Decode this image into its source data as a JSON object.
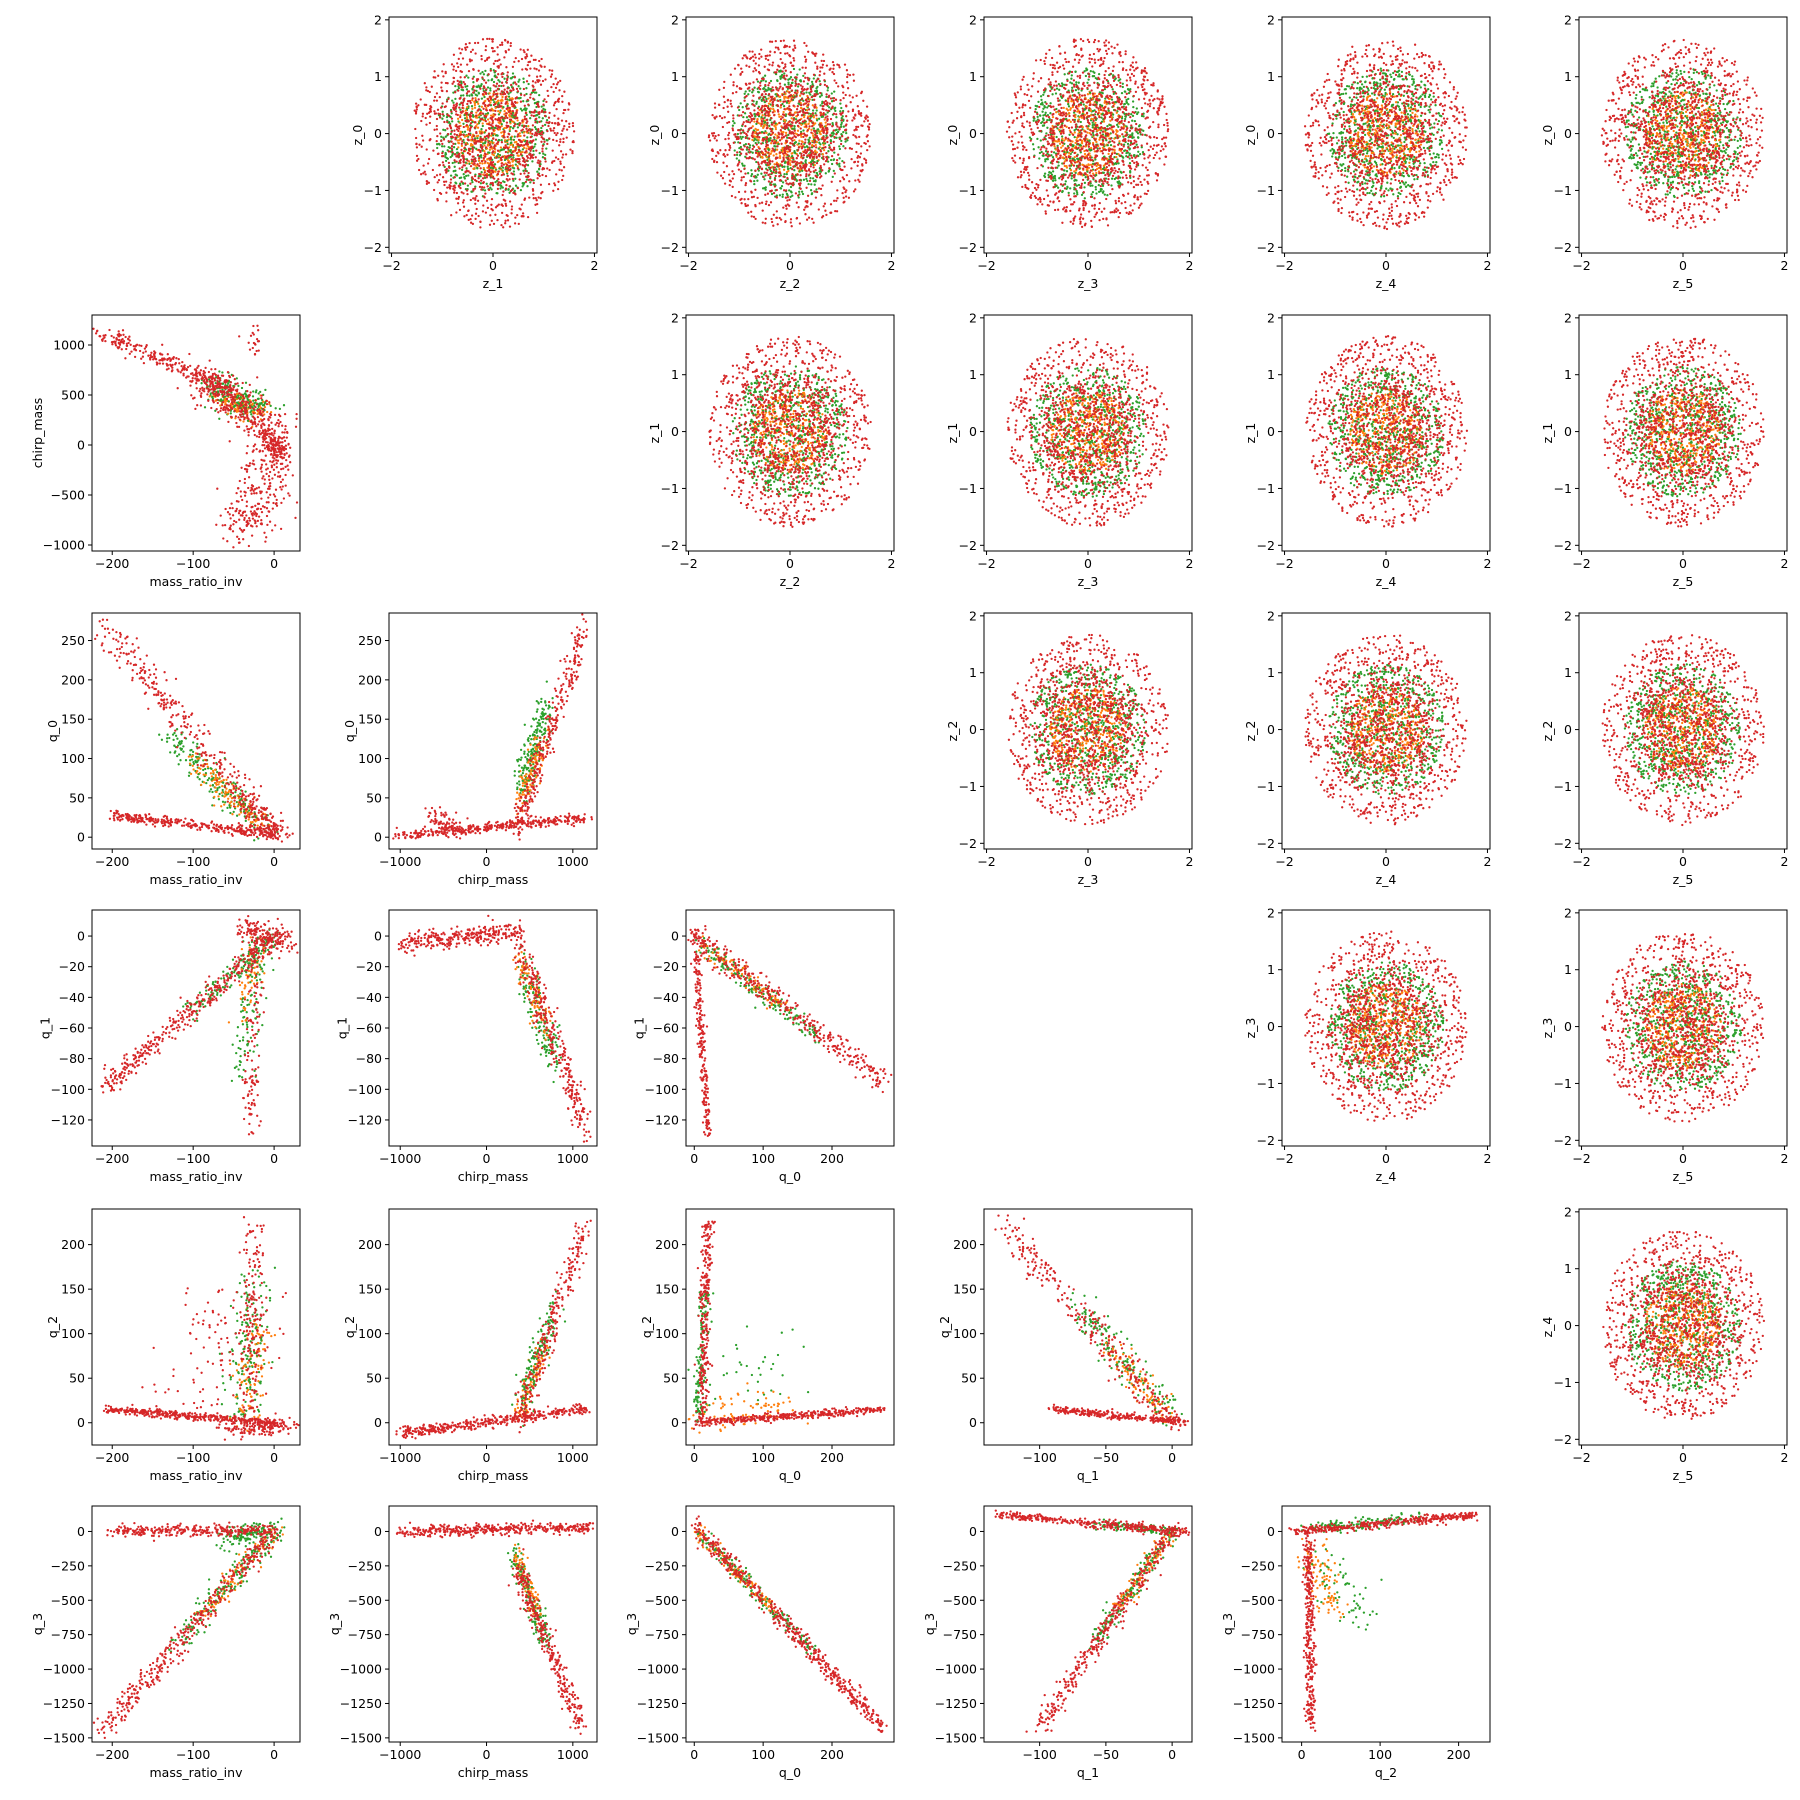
{
  "figure": {
    "kind": "corner pair-plot grid (6 x 6, diagonal empty)",
    "point_colors": [
      "#2ca02c",
      "#ff7f0e",
      "#d62728"
    ],
    "grid": false,
    "legend": "none"
  },
  "chart_data": [
    {
      "type": "scatter",
      "panel": "r0c1",
      "xlabel": "z_1",
      "ylabel": "z_0",
      "xlim": [
        -2.05,
        2.05
      ],
      "ylim": [
        -2.1,
        2.05
      ],
      "xticks": [
        "−2",
        "0",
        "2"
      ],
      "xtick_values": [
        -2,
        0,
        2
      ],
      "yticks": [
        "−2",
        "−1",
        "0",
        "1",
        "2"
      ],
      "ytick_values": [
        -2,
        -1,
        0,
        1,
        2
      ],
      "shape": "isotropic blob centred at (0,0), red spread ≈ ±1.8, green ≈ ±1.2, orange ≈ ±0.8"
    },
    {
      "type": "scatter",
      "panel": "r0c2",
      "xlabel": "z_2",
      "ylabel": "z_0",
      "xlim": [
        -2.05,
        2.05
      ],
      "ylim": [
        -2.1,
        2.05
      ],
      "xticks": [
        "−2",
        "0",
        "2"
      ],
      "xtick_values": [
        -2,
        0,
        2
      ],
      "yticks": [
        "−2",
        "−1",
        "0",
        "1",
        "2"
      ],
      "ytick_values": [
        -2,
        -1,
        0,
        1,
        2
      ],
      "shape": "isotropic blob centred at (0,0)"
    },
    {
      "type": "scatter",
      "panel": "r0c3",
      "xlabel": "z_3",
      "ylabel": "z_0",
      "xlim": [
        -2.05,
        2.05
      ],
      "ylim": [
        -2.1,
        2.05
      ],
      "xticks": [
        "−2",
        "0",
        "2"
      ],
      "xtick_values": [
        -2,
        0,
        2
      ],
      "yticks": [
        "−2",
        "−1",
        "0",
        "1",
        "2"
      ],
      "ytick_values": [
        -2,
        -1,
        0,
        1,
        2
      ],
      "shape": "isotropic blob centred at (0,0)"
    },
    {
      "type": "scatter",
      "panel": "r0c4",
      "xlabel": "z_4",
      "ylabel": "z_0",
      "xlim": [
        -2.05,
        2.05
      ],
      "ylim": [
        -2.1,
        2.05
      ],
      "xticks": [
        "−2",
        "0",
        "2"
      ],
      "xtick_values": [
        -2,
        0,
        2
      ],
      "yticks": [
        "−2",
        "−1",
        "0",
        "1",
        "2"
      ],
      "ytick_values": [
        -2,
        -1,
        0,
        1,
        2
      ],
      "shape": "isotropic blob centred at (0,0)"
    },
    {
      "type": "scatter",
      "panel": "r0c5",
      "xlabel": "z_5",
      "ylabel": "z_0",
      "xlim": [
        -2.05,
        2.05
      ],
      "ylim": [
        -2.1,
        2.05
      ],
      "xticks": [
        "−2",
        "0",
        "2"
      ],
      "xtick_values": [
        -2,
        0,
        2
      ],
      "yticks": [
        "−2",
        "−1",
        "0",
        "1",
        "2"
      ],
      "ytick_values": [
        -2,
        -1,
        0,
        1,
        2
      ],
      "shape": "isotropic blob centred at (0,0)"
    },
    {
      "type": "scatter",
      "panel": "r1c0",
      "xlabel": "mass_ratio_inv",
      "ylabel": "chirp_mass",
      "xlim": [
        -225,
        32
      ],
      "ylim": [
        -1060,
        1300
      ],
      "xticks": [
        "−200",
        "−100",
        "0"
      ],
      "xtick_values": [
        -200,
        -100,
        0
      ],
      "yticks": [
        "−1000",
        "−500",
        "0",
        "500",
        "1000"
      ],
      "ytick_values": [
        -1000,
        -500,
        0,
        500,
        1000
      ],
      "shape": "upper arm from (-215,1140) to (-40,500) bending through (0,0), lower cloud down to (-40,-950)"
    },
    {
      "type": "scatter",
      "panel": "r1c2",
      "xlabel": "z_2",
      "ylabel": "z_1",
      "xlim": [
        -2.05,
        2.05
      ],
      "ylim": [
        -2.1,
        2.05
      ],
      "xticks": [
        "−2",
        "0",
        "2"
      ],
      "xtick_values": [
        -2,
        0,
        2
      ],
      "yticks": [
        "−2",
        "−1",
        "0",
        "1",
        "2"
      ],
      "ytick_values": [
        -2,
        -1,
        0,
        1,
        2
      ],
      "shape": "isotropic blob centred at (0,0)"
    },
    {
      "type": "scatter",
      "panel": "r1c3",
      "xlabel": "z_3",
      "ylabel": "z_1",
      "xlim": [
        -2.05,
        2.05
      ],
      "ylim": [
        -2.1,
        2.05
      ],
      "xticks": [
        "−2",
        "0",
        "2"
      ],
      "xtick_values": [
        -2,
        0,
        2
      ],
      "yticks": [
        "−2",
        "−1",
        "0",
        "1",
        "2"
      ],
      "ytick_values": [
        -2,
        -1,
        0,
        1,
        2
      ],
      "shape": "isotropic blob centred at (0,0)"
    },
    {
      "type": "scatter",
      "panel": "r1c4",
      "xlabel": "z_4",
      "ylabel": "z_1",
      "xlim": [
        -2.05,
        2.05
      ],
      "ylim": [
        -2.1,
        2.05
      ],
      "xticks": [
        "−2",
        "0",
        "2"
      ],
      "xtick_values": [
        -2,
        0,
        2
      ],
      "yticks": [
        "−2",
        "−1",
        "0",
        "1",
        "2"
      ],
      "ytick_values": [
        -2,
        -1,
        0,
        1,
        2
      ],
      "shape": "isotropic blob centred at (0,0)"
    },
    {
      "type": "scatter",
      "panel": "r1c5",
      "xlabel": "z_5",
      "ylabel": "z_1",
      "xlim": [
        -2.05,
        2.05
      ],
      "ylim": [
        -2.1,
        2.05
      ],
      "xticks": [
        "−2",
        "0",
        "2"
      ],
      "xtick_values": [
        -2,
        0,
        2
      ],
      "yticks": [
        "−2",
        "−1",
        "0",
        "1",
        "2"
      ],
      "ytick_values": [
        -2,
        -1,
        0,
        1,
        2
      ],
      "shape": "isotropic blob centred at (0,0)"
    },
    {
      "type": "scatter",
      "panel": "r2c0",
      "xlabel": "mass_ratio_inv",
      "ylabel": "q_0",
      "xlim": [
        -225,
        32
      ],
      "ylim": [
        -15,
        285
      ],
      "xticks": [
        "−200",
        "−100",
        "0"
      ],
      "xtick_values": [
        -200,
        -100,
        0
      ],
      "yticks": [
        "0",
        "50",
        "100",
        "150",
        "200",
        "250"
      ],
      "ytick_values": [
        0,
        50,
        100,
        150,
        200,
        250
      ],
      "shape": "diagonal band from (-210,270) to (0,0); flat band from (-200,28) to (0,5)"
    },
    {
      "type": "scatter",
      "panel": "r2c1",
      "xlabel": "chirp_mass",
      "ylabel": "q_0",
      "xlim": [
        -1130,
        1280
      ],
      "ylim": [
        -15,
        285
      ],
      "xticks": [
        "−1000",
        "0",
        "1000"
      ],
      "xtick_values": [
        -1000,
        0,
        1000
      ],
      "yticks": [
        "0",
        "50",
        "100",
        "150",
        "200",
        "250"
      ],
      "ytick_values": [
        0,
        50,
        100,
        150,
        200,
        250
      ],
      "shape": "rising arm from (300,0) to (1150,270); low band from (-1000,0) to (1200,25)"
    },
    {
      "type": "scatter",
      "panel": "r2c3",
      "xlabel": "z_3",
      "ylabel": "z_2",
      "xlim": [
        -2.05,
        2.05
      ],
      "ylim": [
        -2.1,
        2.05
      ],
      "xticks": [
        "−2",
        "0",
        "2"
      ],
      "xtick_values": [
        -2,
        0,
        2
      ],
      "yticks": [
        "−2",
        "−1",
        "0",
        "1",
        "2"
      ],
      "ytick_values": [
        -2,
        -1,
        0,
        1,
        2
      ],
      "shape": "isotropic blob centred at (0,0)"
    },
    {
      "type": "scatter",
      "panel": "r2c4",
      "xlabel": "z_4",
      "ylabel": "z_2",
      "xlim": [
        -2.05,
        2.05
      ],
      "ylim": [
        -2.1,
        2.05
      ],
      "xticks": [
        "−2",
        "0",
        "2"
      ],
      "xtick_values": [
        -2,
        0,
        2
      ],
      "yticks": [
        "−2",
        "−1",
        "0",
        "1",
        "2"
      ],
      "ytick_values": [
        -2,
        -1,
        0,
        1,
        2
      ],
      "shape": "isotropic blob centred at (0,0)"
    },
    {
      "type": "scatter",
      "panel": "r2c5",
      "xlabel": "z_5",
      "ylabel": "z_2",
      "xlim": [
        -2.05,
        2.05
      ],
      "ylim": [
        -2.1,
        2.05
      ],
      "xticks": [
        "−2",
        "0",
        "2"
      ],
      "xtick_values": [
        -2,
        0,
        2
      ],
      "yticks": [
        "−2",
        "−1",
        "0",
        "1",
        "2"
      ],
      "ytick_values": [
        -2,
        -1,
        0,
        1,
        2
      ],
      "shape": "isotropic blob centred at (0,0)"
    },
    {
      "type": "scatter",
      "panel": "r3c0",
      "xlabel": "mass_ratio_inv",
      "ylabel": "q_1",
      "xlim": [
        -225,
        32
      ],
      "ylim": [
        -137,
        17
      ],
      "xticks": [
        "−200",
        "−100",
        "0"
      ],
      "xtick_values": [
        -200,
        -100,
        0
      ],
      "yticks": [
        "−120",
        "−100",
        "−80",
        "−60",
        "−40",
        "−20",
        "0"
      ],
      "ytick_values": [
        -120,
        -100,
        -80,
        -60,
        -40,
        -20,
        0
      ],
      "shape": "diagonal band from (-210,-100) to (0,0); vertical streak at x≈-25 down to -130"
    },
    {
      "type": "scatter",
      "panel": "r3c1",
      "xlabel": "chirp_mass",
      "ylabel": "q_1",
      "xlim": [
        -1130,
        1280
      ],
      "ylim": [
        -137,
        17
      ],
      "xticks": [
        "−1000",
        "0",
        "1000"
      ],
      "xtick_values": [
        -1000,
        0,
        1000
      ],
      "yticks": [
        "−120",
        "−100",
        "−80",
        "−60",
        "−40",
        "−20",
        "0"
      ],
      "ytick_values": [
        -120,
        -100,
        -80,
        -60,
        -40,
        -20,
        0
      ],
      "shape": "flat band near y=0 from -1000 to 400, then drooping arm to (1150,-125)"
    },
    {
      "type": "scatter",
      "panel": "r3c2",
      "xlabel": "q_0",
      "ylabel": "q_1",
      "xlim": [
        -12,
        290
      ],
      "ylim": [
        -137,
        17
      ],
      "xticks": [
        "0",
        "100",
        "200"
      ],
      "xtick_values": [
        0,
        100,
        200
      ],
      "yticks": [
        "−120",
        "−100",
        "−80",
        "−60",
        "−40",
        "−20",
        "0"
      ],
      "ytick_values": [
        -120,
        -100,
        -80,
        -60,
        -40,
        -20,
        0
      ],
      "shape": "diagonal band from (0,0) to (275,-95); steep streak from (0,0) to (20,-130)"
    },
    {
      "type": "scatter",
      "panel": "r3c4",
      "xlabel": "z_4",
      "ylabel": "z_3",
      "xlim": [
        -2.05,
        2.05
      ],
      "ylim": [
        -2.1,
        2.05
      ],
      "xticks": [
        "−2",
        "0",
        "2"
      ],
      "xtick_values": [
        -2,
        0,
        2
      ],
      "yticks": [
        "−2",
        "−1",
        "0",
        "1",
        "2"
      ],
      "ytick_values": [
        -2,
        -1,
        0,
        1,
        2
      ],
      "shape": "isotropic blob centred at (0,0)"
    },
    {
      "type": "scatter",
      "panel": "r3c5",
      "xlabel": "z_5",
      "ylabel": "z_3",
      "xlim": [
        -2.05,
        2.05
      ],
      "ylim": [
        -2.1,
        2.05
      ],
      "xticks": [
        "−2",
        "0",
        "2"
      ],
      "xtick_values": [
        -2,
        0,
        2
      ],
      "yticks": [
        "−2",
        "−1",
        "0",
        "1",
        "2"
      ],
      "ytick_values": [
        -2,
        -1,
        0,
        1,
        2
      ],
      "shape": "isotropic blob centred at (0,0)"
    },
    {
      "type": "scatter",
      "panel": "r4c0",
      "xlabel": "mass_ratio_inv",
      "ylabel": "q_2",
      "xlim": [
        -225,
        32
      ],
      "ylim": [
        -25,
        240
      ],
      "xticks": [
        "−200",
        "−100",
        "0"
      ],
      "xtick_values": [
        -200,
        -100,
        0
      ],
      "yticks": [
        "0",
        "50",
        "100",
        "150",
        "200"
      ],
      "ytick_values": [
        0,
        50,
        100,
        150,
        200
      ],
      "shape": "flat band from (-210,15) to (0,0); vertical scatter at x≈-25 up to 225"
    },
    {
      "type": "scatter",
      "panel": "r4c1",
      "xlabel": "chirp_mass",
      "ylabel": "q_2",
      "xlim": [
        -1130,
        1280
      ],
      "ylim": [
        -25,
        240
      ],
      "xticks": [
        "−1000",
        "0",
        "1000"
      ],
      "xtick_values": [
        -1000,
        0,
        1000
      ],
      "yticks": [
        "0",
        "50",
        "100",
        "150",
        "200"
      ],
      "ytick_values": [
        0,
        50,
        100,
        150,
        200
      ],
      "shape": "low band from (-1000,-12) to (1150,15); rising arm from (350,0) to (1150,220)"
    },
    {
      "type": "scatter",
      "panel": "r4c2",
      "xlabel": "q_0",
      "ylabel": "q_2",
      "xlim": [
        -12,
        290
      ],
      "ylim": [
        -25,
        240
      ],
      "xticks": [
        "0",
        "100",
        "200"
      ],
      "xtick_values": [
        0,
        100,
        200
      ],
      "yticks": [
        "0",
        "50",
        "100",
        "150",
        "200"
      ],
      "ytick_values": [
        0,
        50,
        100,
        150,
        200
      ],
      "shape": "vertical streak at x≈15 up to 225; flat band from (0,0) to (275,15)"
    },
    {
      "type": "scatter",
      "panel": "r4c3",
      "xlabel": "q_1",
      "ylabel": "q_2",
      "xlim": [
        -142,
        15
      ],
      "ylim": [
        -25,
        240
      ],
      "xticks": [
        "−100",
        "−50",
        "0"
      ],
      "xtick_values": [
        -100,
        -50,
        0
      ],
      "yticks": [
        "0",
        "50",
        "100",
        "150",
        "200"
      ],
      "ytick_values": [
        0,
        50,
        100,
        150,
        200
      ],
      "shape": "diagonal band from (-130,225) to (0,0); flat band from (-90,15) to (10,0)"
    },
    {
      "type": "scatter",
      "panel": "r4c5",
      "xlabel": "z_5",
      "ylabel": "z_4",
      "xlim": [
        -2.05,
        2.05
      ],
      "ylim": [
        -2.1,
        2.05
      ],
      "xticks": [
        "−2",
        "0",
        "2"
      ],
      "xtick_values": [
        -2,
        0,
        2
      ],
      "yticks": [
        "−2",
        "−1",
        "0",
        "1",
        "2"
      ],
      "ytick_values": [
        -2,
        -1,
        0,
        1,
        2
      ],
      "shape": "isotropic blob centred at (0,0)"
    },
    {
      "type": "scatter",
      "panel": "r5c0",
      "xlabel": "mass_ratio_inv",
      "ylabel": "q_3",
      "xlim": [
        -225,
        32
      ],
      "ylim": [
        -1530,
        185
      ],
      "xticks": [
        "−200",
        "−100",
        "0"
      ],
      "xtick_values": [
        -200,
        -100,
        0
      ],
      "yticks": [
        "−1500",
        "−1250",
        "−1000",
        "−750",
        "−500",
        "−250",
        "0"
      ],
      "ytick_values": [
        -1500,
        -1250,
        -1000,
        -750,
        -500,
        -250,
        0
      ],
      "shape": "flat band near y=0 from -200 to 0; diagonal band from (-210,-1440) to (0,0)"
    },
    {
      "type": "scatter",
      "panel": "r5c1",
      "xlabel": "chirp_mass",
      "ylabel": "q_3",
      "xlim": [
        -1130,
        1280
      ],
      "ylim": [
        -1530,
        185
      ],
      "xticks": [
        "−1000",
        "0",
        "1000"
      ],
      "xtick_values": [
        -1000,
        0,
        1000
      ],
      "yticks": [
        "−1500",
        "−1250",
        "−1000",
        "−750",
        "−500",
        "−250",
        "0"
      ],
      "ytick_values": [
        -1500,
        -1250,
        -1000,
        -750,
        -500,
        -250,
        0
      ],
      "shape": "flat band near y=0 from -1000 to 1200; falling arm from (350,-250) to (1100,-1430)"
    },
    {
      "type": "scatter",
      "panel": "r5c2",
      "xlabel": "q_0",
      "ylabel": "q_3",
      "xlim": [
        -12,
        290
      ],
      "ylim": [
        -1530,
        185
      ],
      "xticks": [
        "0",
        "100",
        "200"
      ],
      "xtick_values": [
        0,
        100,
        200
      ],
      "yticks": [
        "−1500",
        "−1250",
        "−1000",
        "−750",
        "−500",
        "−250",
        "0"
      ],
      "ytick_values": [
        -1500,
        -1250,
        -1000,
        -750,
        -500,
        -250,
        0
      ],
      "shape": "single diagonal band from (0,50) to (275,-1440)"
    },
    {
      "type": "scatter",
      "panel": "r5c3",
      "xlabel": "q_1",
      "ylabel": "q_3",
      "xlim": [
        -142,
        15
      ],
      "ylim": [
        -1530,
        185
      ],
      "xticks": [
        "−100",
        "−50",
        "0"
      ],
      "xtick_values": [
        -100,
        -50,
        0
      ],
      "yticks": [
        "−1500",
        "−1250",
        "−1000",
        "−750",
        "−500",
        "−250",
        "0"
      ],
      "ytick_values": [
        -1500,
        -1250,
        -1000,
        -750,
        -500,
        -250,
        0
      ],
      "shape": "flat band near y=0 from -130 to 10; diagonal band from (-100,-1430) to (0,0)"
    },
    {
      "type": "scatter",
      "panel": "r5c4",
      "xlabel": "q_2",
      "ylabel": "q_3",
      "xlim": [
        -25,
        240
      ],
      "ylim": [
        -1530,
        185
      ],
      "xticks": [
        "0",
        "100",
        "200"
      ],
      "xtick_values": [
        0,
        100,
        200
      ],
      "yticks": [
        "−1500",
        "−1250",
        "−1000",
        "−750",
        "−500",
        "−250",
        "0"
      ],
      "ytick_values": [
        -1500,
        -1250,
        -1000,
        -750,
        -500,
        -250,
        0
      ],
      "shape": "vertical streak at x≈10 down to -1430; flat band from (-10,0) to (220,120)"
    }
  ]
}
